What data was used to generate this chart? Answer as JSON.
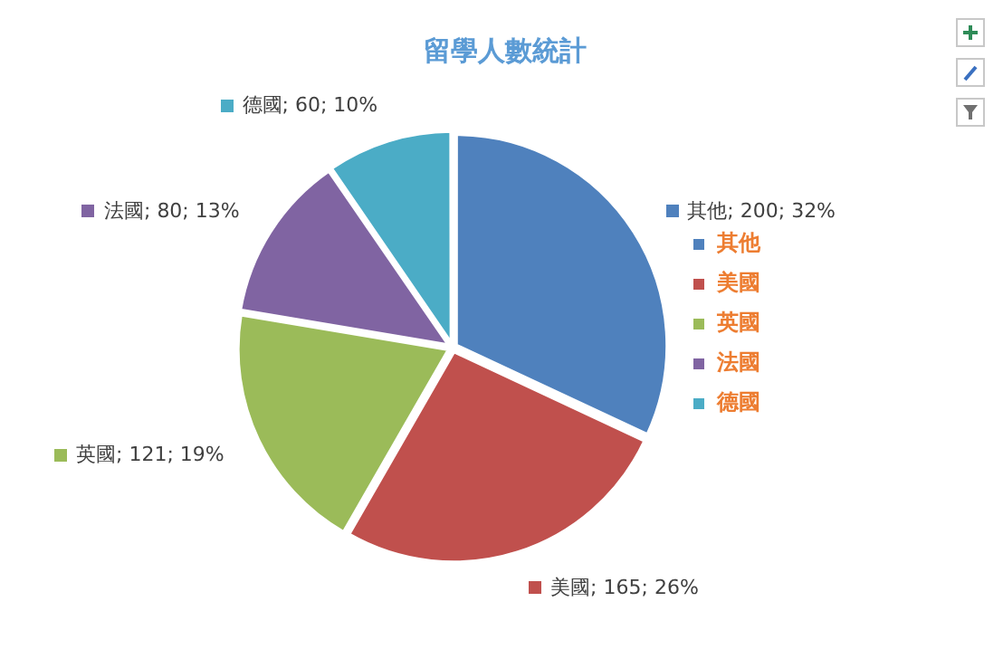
{
  "chart_data": {
    "type": "pie",
    "title": "留學人數統計",
    "categories": [
      "其他",
      "美國",
      "英國",
      "法國",
      "德國"
    ],
    "values": [
      200,
      165,
      121,
      80,
      60
    ],
    "colors": [
      "#4f81bd",
      "#c0504d",
      "#9bbb59",
      "#8064a2",
      "#4bacc6"
    ],
    "value_labels": [
      "其他; 200; 32%",
      "美國; 165; 26%",
      "英國; 121; 19%",
      "法國; 80; 13%",
      "德國; 60; 10%"
    ],
    "legend": "right"
  }
}
